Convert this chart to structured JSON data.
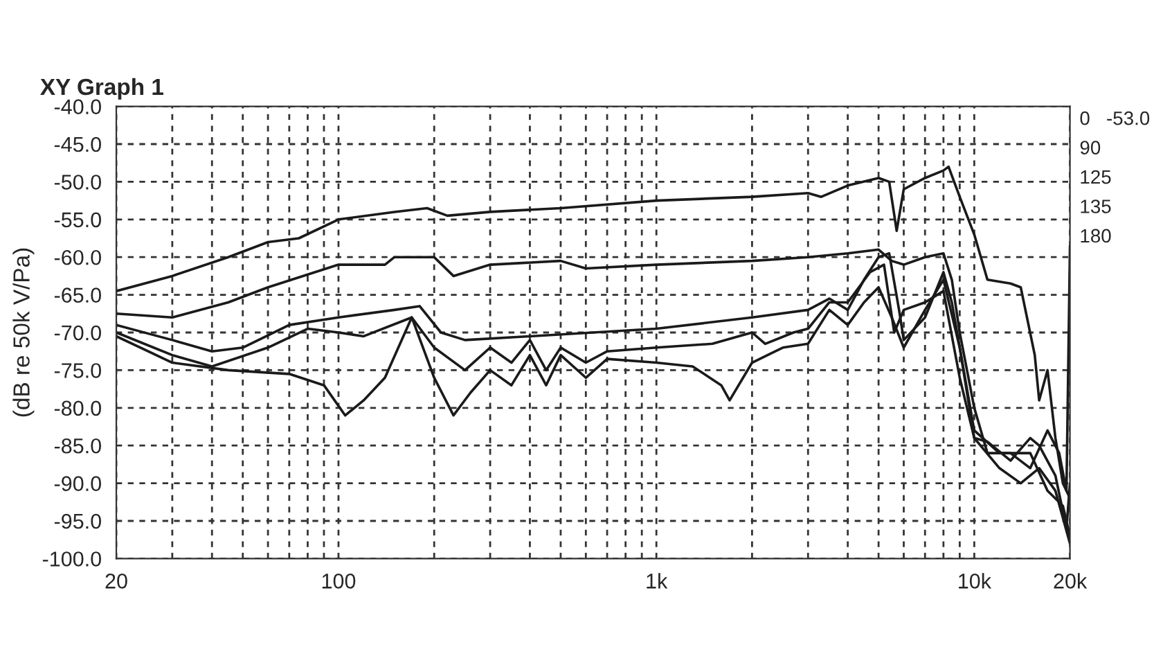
{
  "chart_data": {
    "type": "line",
    "title": "XY Graph 1",
    "ylabel": "(dB re 50k V/Pa)",
    "log": "x",
    "grid": true,
    "line_style": "solid",
    "marker": "none",
    "xlim": [
      20,
      20000
    ],
    "ylim": [
      -100,
      -40
    ],
    "xticks": [
      {
        "value": 20,
        "label": "20"
      },
      {
        "value": 30,
        "label": null
      },
      {
        "value": 40,
        "label": null
      },
      {
        "value": 50,
        "label": null
      },
      {
        "value": 60,
        "label": null
      },
      {
        "value": 70,
        "label": null
      },
      {
        "value": 80,
        "label": null
      },
      {
        "value": 90,
        "label": null
      },
      {
        "value": 100,
        "label": "100"
      },
      {
        "value": 200,
        "label": null
      },
      {
        "value": 300,
        "label": null
      },
      {
        "value": 400,
        "label": null
      },
      {
        "value": 500,
        "label": null
      },
      {
        "value": 600,
        "label": null
      },
      {
        "value": 700,
        "label": null
      },
      {
        "value": 800,
        "label": null
      },
      {
        "value": 900,
        "label": null
      },
      {
        "value": 1000,
        "label": "1k"
      },
      {
        "value": 2000,
        "label": null
      },
      {
        "value": 3000,
        "label": null
      },
      {
        "value": 4000,
        "label": null
      },
      {
        "value": 5000,
        "label": null
      },
      {
        "value": 6000,
        "label": null
      },
      {
        "value": 7000,
        "label": null
      },
      {
        "value": 8000,
        "label": null
      },
      {
        "value": 9000,
        "label": null
      },
      {
        "value": 10000,
        "label": "10k"
      },
      {
        "value": 20000,
        "label": "20k"
      }
    ],
    "yticks": [
      {
        "value": -40,
        "label": "-40.0"
      },
      {
        "value": -45,
        "label": "-45.0"
      },
      {
        "value": -50,
        "label": "-50.0"
      },
      {
        "value": -55,
        "label": "-55.0"
      },
      {
        "value": -60,
        "label": "-60.0"
      },
      {
        "value": -65,
        "label": "-65.0"
      },
      {
        "value": -70,
        "label": "-70.0"
      },
      {
        "value": -75,
        "label": "-75.0"
      },
      {
        "value": -80,
        "label": "-80.0"
      },
      {
        "value": -85,
        "label": "-85.0"
      },
      {
        "value": -90,
        "label": "-90.0"
      },
      {
        "value": -95,
        "label": "-95.0"
      },
      {
        "value": -100,
        "label": "-100.0"
      }
    ],
    "annotations": [
      "0   -53.0",
      "90",
      "125",
      "135",
      "180"
    ],
    "series": [
      {
        "color": "#1a1a1a",
        "x": [
          20,
          30,
          45,
          60,
          75,
          100,
          150,
          190,
          220,
          300,
          500,
          1000,
          2000,
          3000,
          3300,
          4000,
          5000,
          5400,
          5700,
          6000,
          7000,
          8000,
          8300,
          9000,
          10000,
          11000,
          13000,
          14000,
          15500,
          16000,
          17000,
          18000,
          19000,
          19500,
          20000
        ],
        "values": [
          -64.5,
          -62.5,
          -60,
          -58,
          -57.5,
          -55,
          -54,
          -53.5,
          -54.5,
          -54,
          -53.5,
          -52.5,
          -52,
          -51.5,
          -52,
          -50.5,
          -49.5,
          -50,
          -56.5,
          -51,
          -49.5,
          -48.5,
          -48,
          -52,
          -57,
          -63,
          -63.5,
          -64,
          -73,
          -79,
          -75,
          -84,
          -90,
          -91,
          -58.5
        ]
      },
      {
        "color": "#1a1a1a",
        "x": [
          20,
          30,
          45,
          60,
          100,
          140,
          150,
          200,
          230,
          300,
          500,
          600,
          1000,
          2000,
          3000,
          4000,
          5000,
          5500,
          6000,
          7000,
          8000,
          8500,
          9000,
          10000,
          11000,
          13000,
          15000,
          17000,
          18500,
          19500,
          20000
        ],
        "values": [
          -67.5,
          -68,
          -66,
          -64,
          -61,
          -61,
          -60,
          -60,
          -62.5,
          -61,
          -60.5,
          -61.5,
          -61,
          -60.5,
          -60,
          -59.5,
          -59,
          -60.5,
          -61,
          -60,
          -59.5,
          -63,
          -70,
          -80,
          -86,
          -86,
          -88,
          -83,
          -86,
          -91,
          -92
        ]
      },
      {
        "color": "#1a1a1a",
        "x": [
          20,
          30,
          40,
          50,
          70,
          100,
          150,
          180,
          210,
          250,
          400,
          1000,
          2000,
          3000,
          3500,
          4000,
          4500,
          5000,
          5400,
          5800,
          6000,
          7000,
          8000,
          8500,
          10000,
          12000,
          15000,
          17000,
          19000,
          20000
        ],
        "values": [
          -69,
          -71,
          -72.5,
          -72,
          -69,
          -68,
          -67,
          -66.5,
          -70,
          -71,
          -70.5,
          -69.5,
          -68,
          -67,
          -65.5,
          -67,
          -63,
          -60,
          -59.5,
          -67,
          -71,
          -68,
          -62,
          -66,
          -83,
          -86,
          -86,
          -91,
          -93,
          -97
        ]
      },
      {
        "color": "#1a1a1a",
        "x": [
          20,
          30,
          40,
          60,
          80,
          100,
          120,
          170,
          200,
          250,
          300,
          350,
          400,
          450,
          500,
          600,
          700,
          1000,
          1500,
          2000,
          2200,
          2700,
          3000,
          3500,
          4000,
          4700,
          5200,
          5600,
          6000,
          7000,
          8000,
          9000,
          10000,
          11000,
          13000,
          15000,
          16000,
          18000,
          19500,
          20000
        ],
        "values": [
          -70,
          -73,
          -74.5,
          -72,
          -69.5,
          -70,
          -70.5,
          -68,
          -72,
          -75,
          -72,
          -74,
          -71,
          -75,
          -72,
          -74,
          -72.5,
          -72,
          -71.5,
          -70,
          -71.5,
          -70,
          -69.5,
          -66,
          -66,
          -62,
          -61,
          -70,
          -67,
          -66,
          -64.5,
          -76,
          -84,
          -84.5,
          -87,
          -84,
          -85,
          -89,
          -96,
          -90
        ]
      },
      {
        "color": "#1a1a1a",
        "x": [
          20,
          30,
          45,
          70,
          90,
          105,
          120,
          140,
          170,
          200,
          230,
          260,
          300,
          350,
          400,
          450,
          500,
          600,
          700,
          1000,
          1300,
          1600,
          1700,
          2000,
          2500,
          3000,
          3500,
          4000,
          4500,
          5000,
          5500,
          6000,
          7000,
          8000,
          9000,
          10000,
          12000,
          14000,
          16000,
          18000,
          20000
        ],
        "values": [
          -70.5,
          -74,
          -75,
          -75.5,
          -77,
          -81,
          -79,
          -76,
          -68,
          -76,
          -81,
          -78,
          -75,
          -77,
          -73,
          -77,
          -73,
          -76,
          -73.5,
          -74,
          -74.5,
          -77,
          -79,
          -74,
          -72,
          -71.5,
          -67,
          -69,
          -66,
          -64,
          -68,
          -72,
          -67,
          -63,
          -72,
          -84,
          -88,
          -90,
          -88,
          -91,
          -98
        ]
      }
    ]
  }
}
